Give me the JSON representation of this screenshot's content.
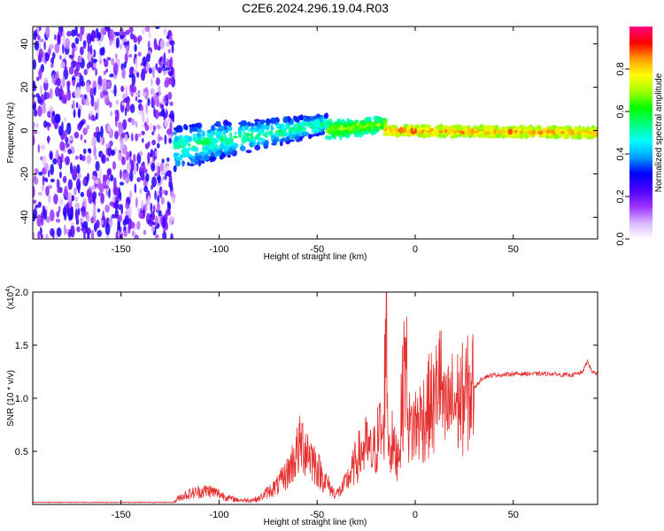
{
  "chart_data": [
    {
      "type": "heatmap",
      "title": "C2E6.2024.296.19.04.R03",
      "xlabel": "Height of straight line (km)",
      "ylabel": "Frequency (Hz)",
      "xlim": [
        -195,
        93
      ],
      "ylim": [
        -50,
        48
      ],
      "x_ticks": [
        -150,
        -100,
        -50,
        0,
        50
      ],
      "y_ticks": [
        -40,
        -20,
        0,
        20,
        40
      ],
      "colorbar": {
        "label": "Normalized spectral amplitude",
        "range": [
          0,
          1
        ],
        "ticks": [
          "0.0",
          "0.2",
          "0.4",
          "0.6",
          "0.8"
        ],
        "colormap": [
          "#ffffff",
          "#d9b3ff",
          "#9b30ff",
          "#4b00ff",
          "#0000ff",
          "#00a0ff",
          "#00ffff",
          "#00ff80",
          "#00ff00",
          "#a0ff00",
          "#ffff00",
          "#ffa000",
          "#ff0000",
          "#ff0080"
        ]
      },
      "regions": [
        {
          "x_range": [
            -195,
            -123
          ],
          "description": "broadband scattered noise",
          "amplitude": [
            0.05,
            0.3
          ]
        },
        {
          "x_range": [
            -123,
            -45
          ],
          "center_hz": [
            -8,
            3
          ],
          "half_width_hz": [
            10,
            4
          ],
          "amplitude": [
            0.2,
            0.6
          ]
        },
        {
          "x_range": [
            -45,
            -15
          ],
          "center_hz": [
            0,
            3
          ],
          "half_width_hz": [
            4,
            3
          ],
          "amplitude": [
            0.4,
            0.75
          ]
        },
        {
          "x_range": [
            -15,
            93
          ],
          "center_hz": [
            0,
            -1
          ],
          "half_width_hz": [
            2,
            2
          ],
          "amplitude": [
            0.6,
            0.9
          ]
        }
      ]
    },
    {
      "type": "line",
      "title": "",
      "xlabel": "Height of straight line (km)",
      "ylabel": "SNR (10 * v/v)",
      "multiplier_label": "(x10",
      "multiplier_exp": "4",
      "multiplier_close": ")",
      "xlim": [
        -195,
        93
      ],
      "ylim": [
        0,
        2.0
      ],
      "x_ticks": [
        -150,
        -100,
        -50,
        0,
        50
      ],
      "y_ticks": [
        "0.5",
        "1.0",
        "1.5",
        "2.0"
      ],
      "color": "#e53030",
      "series": [
        {
          "x": [
            -195,
            -150,
            -123,
            -120,
            -115,
            -110,
            -105,
            -100,
            -95,
            -90,
            -85,
            -80,
            -75,
            -70,
            -65,
            -60,
            -58,
            -55,
            -52,
            -50,
            -47,
            -45,
            -42,
            -40,
            -37,
            -35,
            -32,
            -30,
            -27,
            -25,
            -22,
            -20,
            -18,
            -16,
            -15,
            -14,
            -13,
            -12,
            -10,
            -8,
            -5,
            -3,
            0,
            3,
            5,
            8,
            10,
            12,
            15,
            18,
            20,
            25,
            30,
            35,
            40,
            45,
            50,
            55,
            60,
            65,
            70,
            75,
            80,
            85,
            88,
            90,
            93
          ],
          "y": [
            0.02,
            0.02,
            0.02,
            0.07,
            0.1,
            0.12,
            0.13,
            0.1,
            0.06,
            0.04,
            0.04,
            0.05,
            0.12,
            0.18,
            0.3,
            0.5,
            0.58,
            0.52,
            0.42,
            0.35,
            0.25,
            0.2,
            0.12,
            0.1,
            0.15,
            0.22,
            0.32,
            0.42,
            0.5,
            0.55,
            0.45,
            0.55,
            0.7,
            0.6,
            1.95,
            0.8,
            0.5,
            0.6,
            0.45,
            0.55,
            1.45,
            0.7,
            0.75,
            0.8,
            0.85,
            0.95,
            0.9,
            1.3,
            0.8,
            0.95,
            0.95,
            1.0,
            1.1,
            1.2,
            1.22,
            1.22,
            1.23,
            1.23,
            1.23,
            1.23,
            1.23,
            1.22,
            1.22,
            1.24,
            1.35,
            1.25,
            1.23
          ]
        }
      ]
    }
  ]
}
